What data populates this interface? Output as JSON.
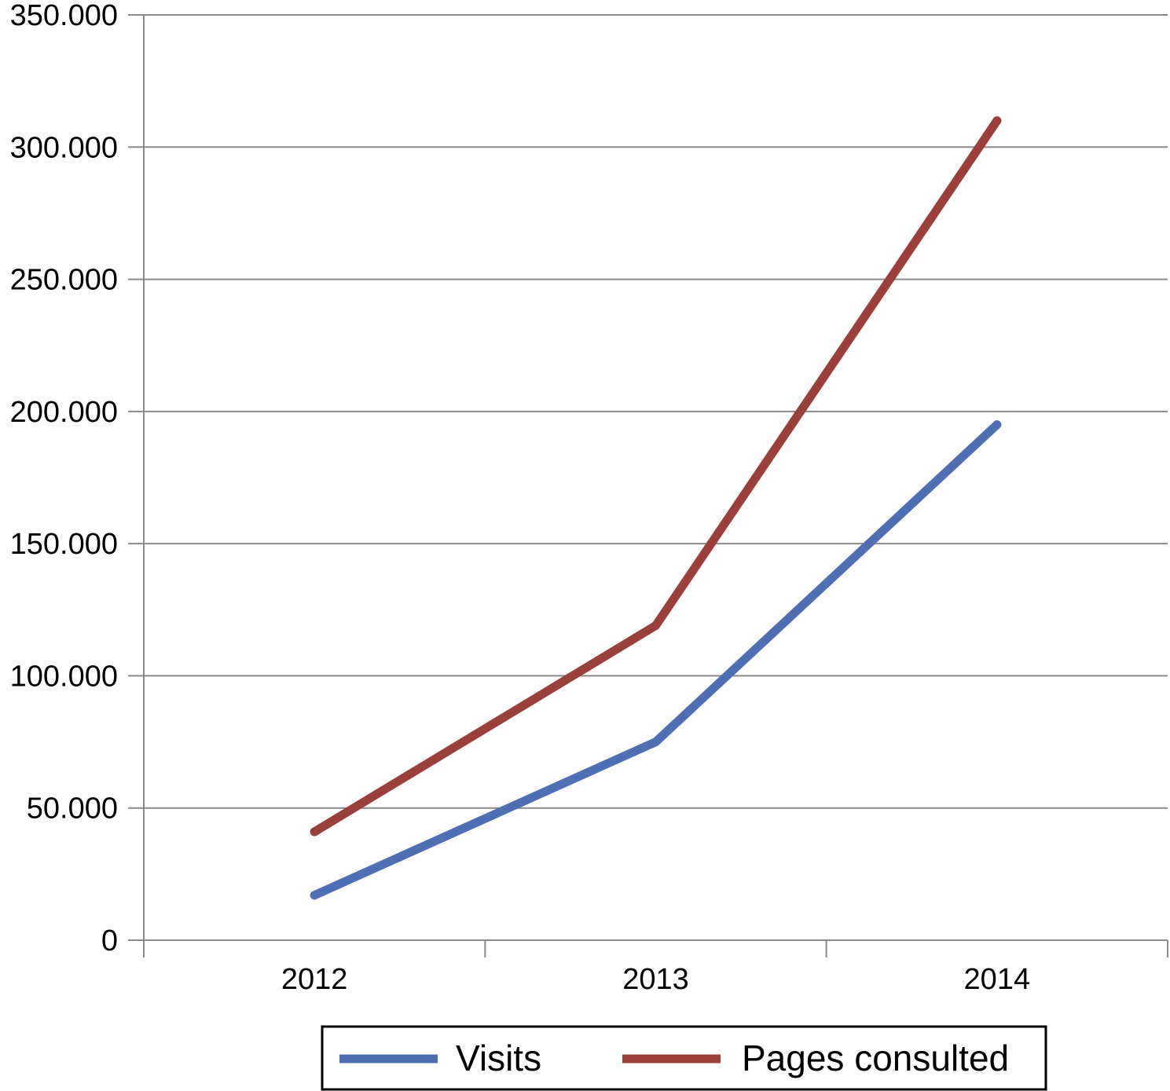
{
  "chart_data": {
    "type": "line",
    "title": "",
    "xlabel": "",
    "ylabel": "",
    "categories": [
      "2012",
      "2013",
      "2014"
    ],
    "ylim": [
      0,
      350000
    ],
    "yticks": [
      0,
      50000,
      100000,
      150000,
      200000,
      250000,
      300000,
      350000
    ],
    "ytick_labels": [
      "0",
      "50.000",
      "100.000",
      "150.000",
      "200.000",
      "250.000",
      "300.000",
      "350.000"
    ],
    "grid": true,
    "legend_position": "bottom",
    "series": [
      {
        "name": "Visits",
        "color": "#4f6fb5",
        "values": [
          17000,
          75000,
          195000
        ]
      },
      {
        "name": "Pages consulted",
        "color": "#9b3f3a",
        "values": [
          41000,
          119000,
          310000
        ]
      }
    ]
  }
}
